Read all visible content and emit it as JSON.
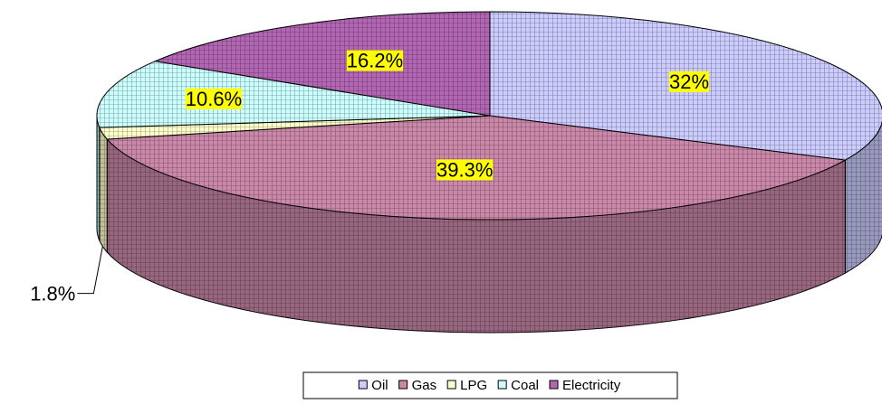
{
  "chart_data": {
    "type": "pie3d",
    "categories": [
      "Oil",
      "Gas",
      "LPG",
      "Coal",
      "Electricity"
    ],
    "values": [
      32,
      39.3,
      1.8,
      10.6,
      16.2
    ],
    "value_labels": [
      "32%",
      "39.3%",
      "1.8%",
      "10.6%",
      "16.2%"
    ],
    "colors": [
      "#ccccff",
      "#cc88aa",
      "#ffffcc",
      "#ccffff",
      "#b366b3"
    ],
    "legend": "bottom"
  }
}
